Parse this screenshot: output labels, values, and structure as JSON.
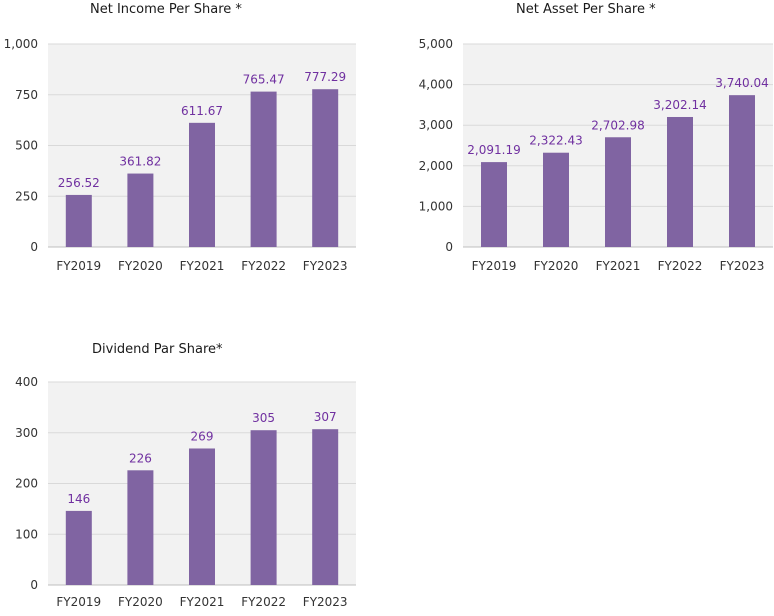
{
  "chart_data": [
    {
      "type": "bar",
      "title": "Net Income Per Share *",
      "categories": [
        "FY2019",
        "FY2020",
        "FY2021",
        "FY2022",
        "FY2023"
      ],
      "values": [
        256.52,
        361.82,
        611.67,
        765.47,
        777.29
      ],
      "value_labels": [
        "256.52",
        "361.82",
        "611.67",
        "765.47",
        "777.29"
      ],
      "ylim": [
        0,
        1000
      ],
      "yticks": [
        0,
        250,
        500,
        750,
        1000
      ],
      "ytick_labels": [
        "0",
        "250",
        "500",
        "750",
        "1,000"
      ],
      "grid": true,
      "xlabel": "",
      "ylabel": ""
    },
    {
      "type": "bar",
      "title": "Net Asset Per Share *",
      "categories": [
        "FY2019",
        "FY2020",
        "FY2021",
        "FY2022",
        "FY2023"
      ],
      "values": [
        2091.19,
        2322.43,
        2702.98,
        3202.14,
        3740.04
      ],
      "value_labels": [
        "2,091.19",
        "2,322.43",
        "2,702.98",
        "3,202.14",
        "3,740.04"
      ],
      "ylim": [
        0,
        5000
      ],
      "yticks": [
        0,
        1000,
        2000,
        3000,
        4000,
        5000
      ],
      "ytick_labels": [
        "0",
        "1,000",
        "2,000",
        "3,000",
        "4,000",
        "5,000"
      ],
      "grid": true,
      "xlabel": "",
      "ylabel": ""
    },
    {
      "type": "bar",
      "title": "Dividend Par Share*",
      "categories": [
        "FY2019",
        "FY2020",
        "FY2021",
        "FY2022",
        "FY2023"
      ],
      "values": [
        146,
        226,
        269,
        305,
        307
      ],
      "value_labels": [
        "146",
        "226",
        "269",
        "305",
        "307"
      ],
      "ylim": [
        0,
        400
      ],
      "yticks": [
        0,
        100,
        200,
        300,
        400
      ],
      "ytick_labels": [
        "0",
        "100",
        "200",
        "300",
        "400"
      ],
      "grid": true,
      "xlabel": "",
      "ylabel": ""
    }
  ],
  "colors": {
    "bar": "#8064a2",
    "value_label": "#7030a0",
    "plot_bg": "#f2f2f2",
    "grid": "#d9d9d9",
    "axis_text": "#333333"
  }
}
